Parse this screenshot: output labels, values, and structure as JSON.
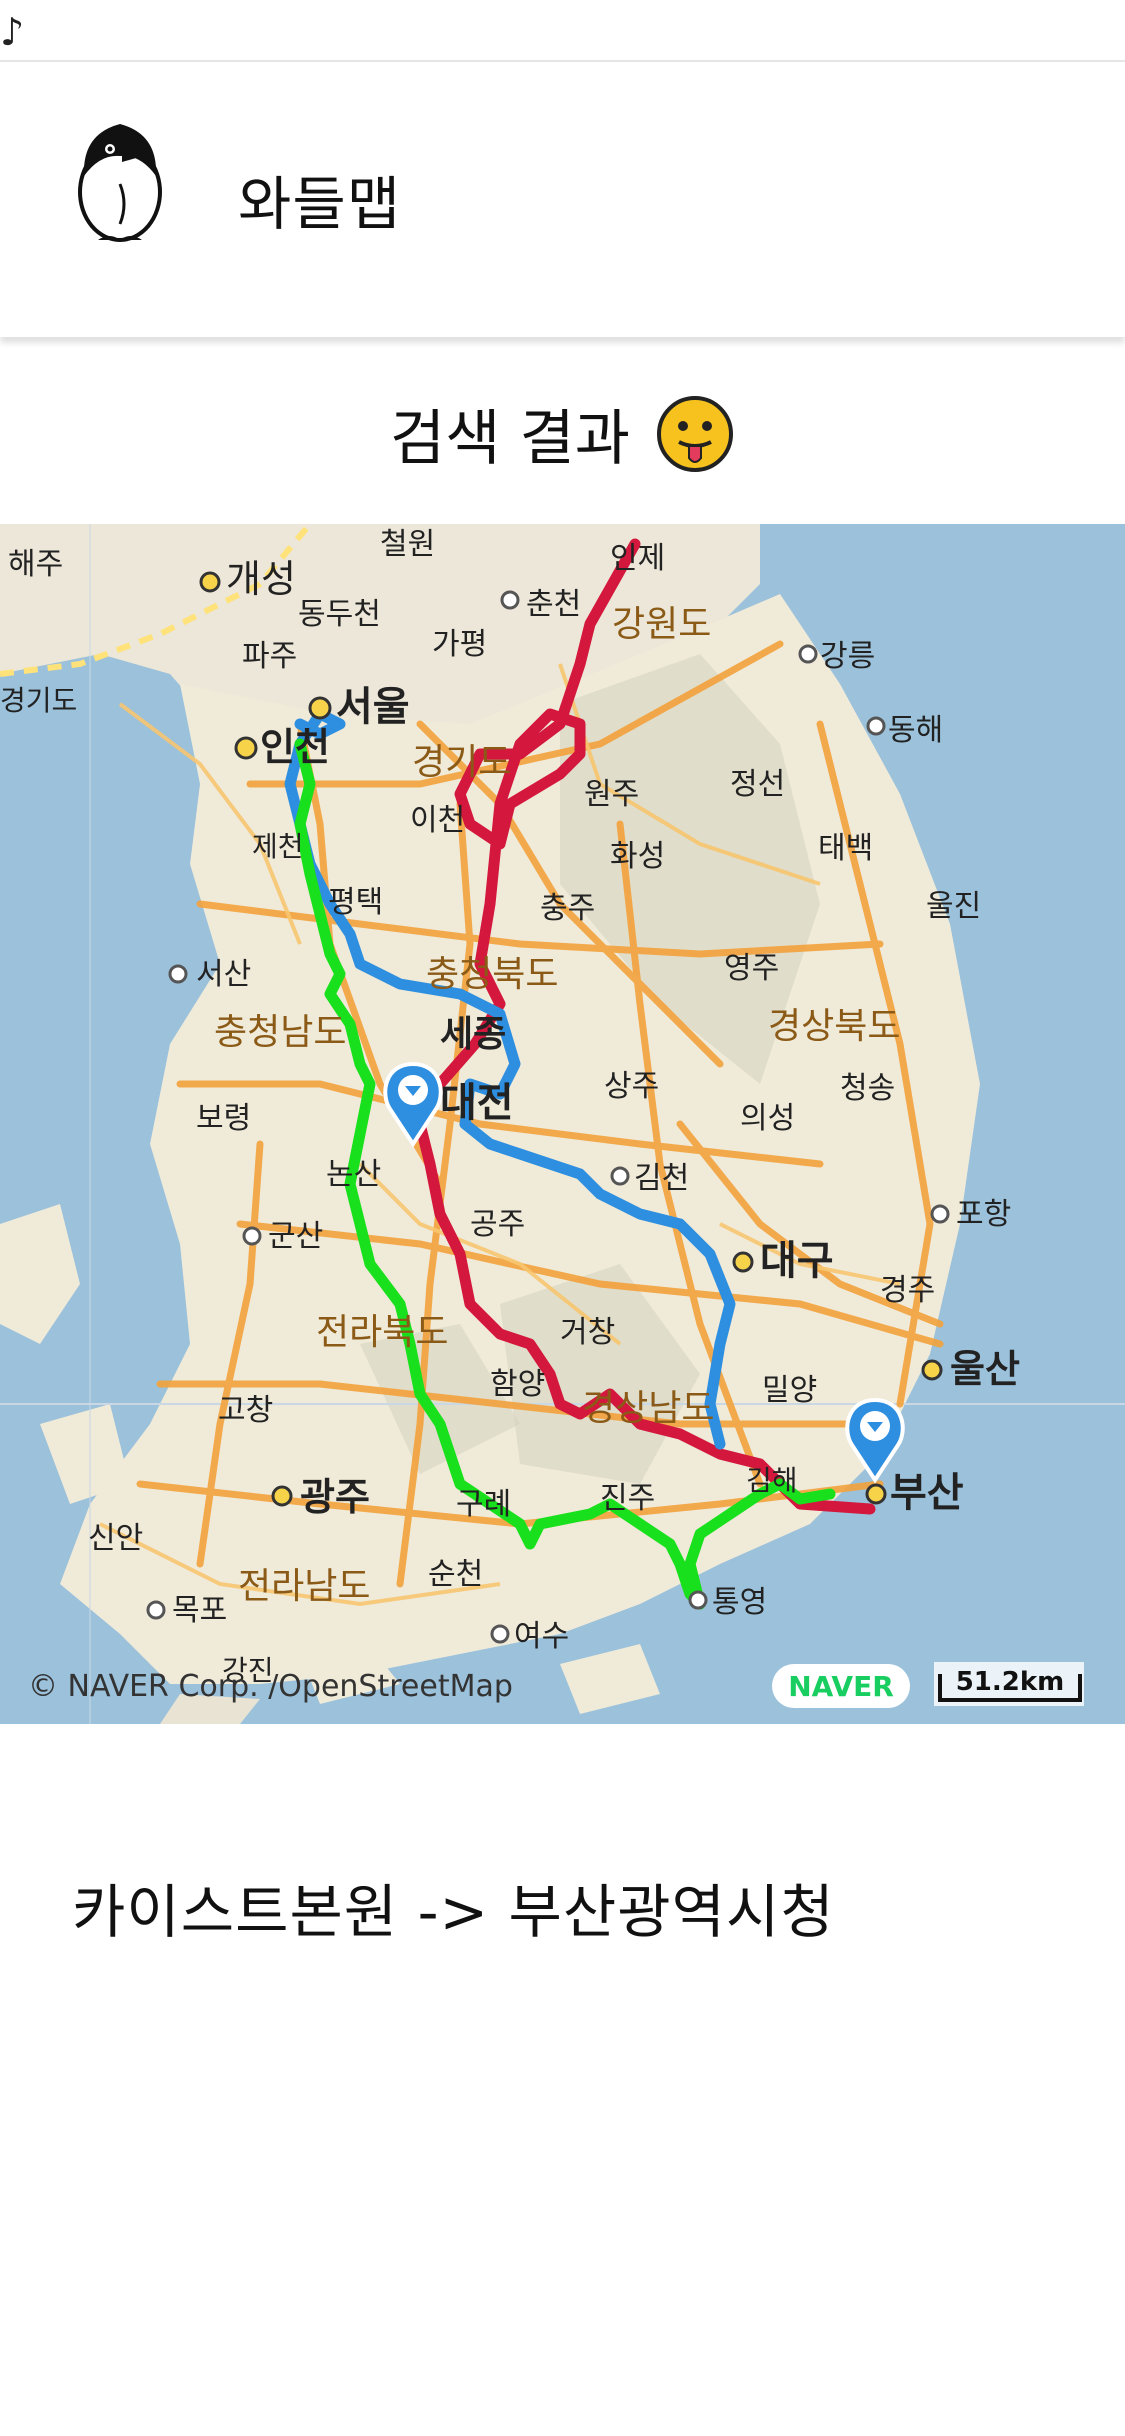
{
  "status": {
    "glyph": "♪"
  },
  "header": {
    "title": "와들맵",
    "logo_icon": "penguin-icon"
  },
  "results": {
    "heading": "검색 결과",
    "emoji_icon": "tongue-out-face-icon"
  },
  "map": {
    "copyright": "© NAVER Corp. /OpenStreetMap",
    "brand": "NAVER",
    "scale": "51.2km",
    "markers": [
      "origin-marker",
      "destination-marker"
    ],
    "route_colors": {
      "red": "#d4173d",
      "blue": "#2e8fe0",
      "green": "#19e01c"
    },
    "place_labels": [
      "해주",
      "개성",
      "철원",
      "동두천",
      "파주",
      "가평",
      "춘천",
      "강원도",
      "강릉",
      "서울",
      "인천",
      "경기도",
      "원주",
      "정선",
      "동해",
      "태백",
      "이천",
      "제천",
      "화성",
      "평택",
      "충주",
      "영주",
      "울진",
      "서산",
      "충청북도",
      "충청남도",
      "세종",
      "경상북도",
      "청송",
      "보령",
      "대전",
      "상주",
      "의성",
      "논산",
      "김천",
      "포항",
      "군산",
      "공주",
      "대구",
      "경주",
      "전라북도",
      "거창",
      "울산",
      "고창",
      "함양",
      "밀양",
      "경상남도",
      "광주",
      "구례",
      "진주",
      "김해",
      "부산",
      "신안",
      "순천",
      "통영",
      "전라남도",
      "목포",
      "여수",
      "강진",
      "경기도",
      "인제"
    ]
  },
  "route": {
    "label": "카이스트본원 -> 부산광역시청"
  }
}
